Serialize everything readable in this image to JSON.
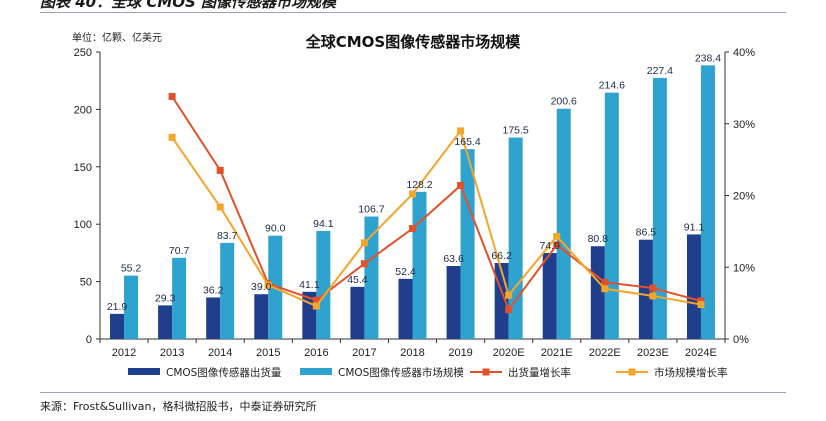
{
  "caption": "图表 40：全球 CMOS 图像传感器市场规模",
  "source": "来源：Frost&Sullivan，格科微招股书，中泰证券研究所",
  "chart_data": {
    "type": "bar",
    "title": "全球CMOS图像传感器市场规模",
    "unit_label": "单位：亿颗、亿美元",
    "categories": [
      "2012",
      "2013",
      "2014",
      "2015",
      "2016",
      "2017",
      "2018",
      "2019",
      "2020E",
      "2021E",
      "2022E",
      "2023E",
      "2024E"
    ],
    "ylim": [
      0,
      250
    ],
    "yticks": [
      0,
      50,
      100,
      150,
      200,
      250
    ],
    "y2lim": [
      0,
      0.4
    ],
    "y2ticks": [
      "0%",
      "10%",
      "20%",
      "30%",
      "40%"
    ],
    "grid": false,
    "legend_position": "bottom",
    "series": [
      {
        "name": "CMOS图像传感器出货量",
        "kind": "bar",
        "axis": "left",
        "color": "#1f3e8c",
        "values": [
          21.9,
          29.3,
          36.2,
          39.0,
          41.1,
          45.4,
          52.4,
          63.6,
          66.2,
          74.9,
          80.8,
          86.5,
          91.1
        ],
        "labels": [
          "21.9",
          "29.3",
          "36.2",
          "39.0",
          "41.1",
          "45.4",
          "52.4",
          "63.6",
          "66.2",
          "74.9",
          "80.8",
          "86.5",
          "91.1"
        ]
      },
      {
        "name": "CMOS图像传感器市场规模",
        "kind": "bar",
        "axis": "left",
        "color": "#2fa3cf",
        "values": [
          55.2,
          70.7,
          83.7,
          90.0,
          94.1,
          106.7,
          128.2,
          165.4,
          175.5,
          200.6,
          214.6,
          227.4,
          238.4
        ],
        "labels": [
          "55.2",
          "70.7",
          "83.7",
          "90.0",
          "94.1",
          "106.7",
          "128.2",
          "165.4",
          "175.5",
          "200.6",
          "214.6",
          "227.4",
          "238.4"
        ]
      },
      {
        "name": "出货量增长率",
        "kind": "line",
        "axis": "right",
        "color": "#e2522a",
        "values": [
          null,
          0.338,
          0.235,
          0.077,
          0.054,
          0.105,
          0.154,
          0.214,
          0.041,
          0.131,
          0.079,
          0.071,
          0.053
        ]
      },
      {
        "name": "市场规模增长率",
        "kind": "line",
        "axis": "right",
        "color": "#f4a62a",
        "values": [
          null,
          0.281,
          0.184,
          0.075,
          0.046,
          0.134,
          0.202,
          0.29,
          0.061,
          0.143,
          0.07,
          0.06,
          0.048
        ]
      }
    ]
  }
}
